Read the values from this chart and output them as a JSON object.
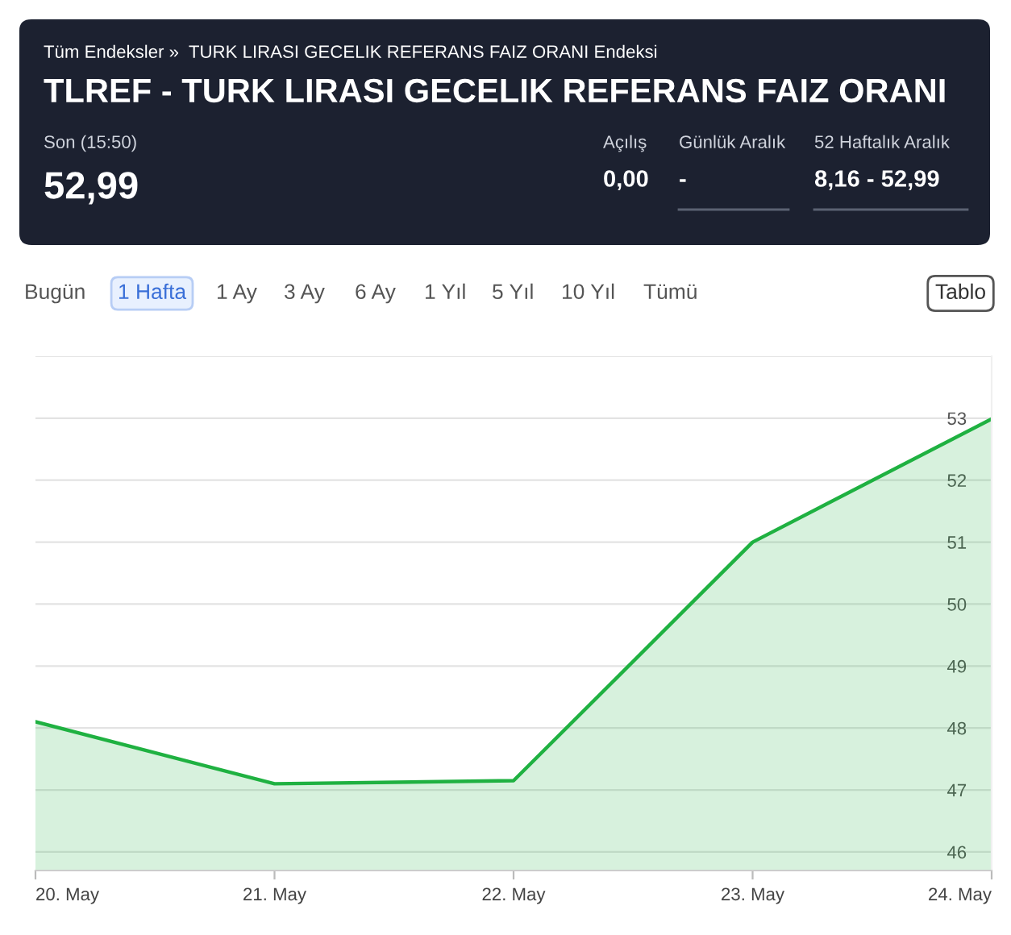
{
  "chart_data": {
    "type": "area",
    "title": "TLREF - TURK LIRASI GECELIK REFERANS FAIZ ORANI",
    "subtitle": "Tüm Endeksler »  TURK LIRASI GECELIK REFERANS FAIZ ORANI Endeksi",
    "annotations": [
      "Son (15:50)",
      "52,99",
      "Açılış",
      "0,00",
      "Günlük Aralık",
      "-",
      "52 Haftalık Aralık",
      "8,16 - 52,99",
      "Bugün",
      "1 Hafta",
      "1 Ay",
      "3 Ay",
      "6 Ay",
      "1 Yıl",
      "5 Yıl",
      "10 Yıl",
      "Tümü",
      "Tablo"
    ],
    "categories": [
      "20. May",
      "21. May",
      "22. May",
      "23. May",
      "24. May"
    ],
    "series": [
      {
        "color": "#1fb141",
        "values": [
          48.1,
          47.1,
          47.15,
          51.0,
          52.99
        ]
      }
    ],
    "ylim": [
      45.7,
      54
    ],
    "yticks": [
      46,
      47,
      48,
      49,
      50,
      51,
      52,
      53,
      {
        "value": 54,
        "label": null
      }
    ],
    "grid": "y",
    "legend": false
  }
}
